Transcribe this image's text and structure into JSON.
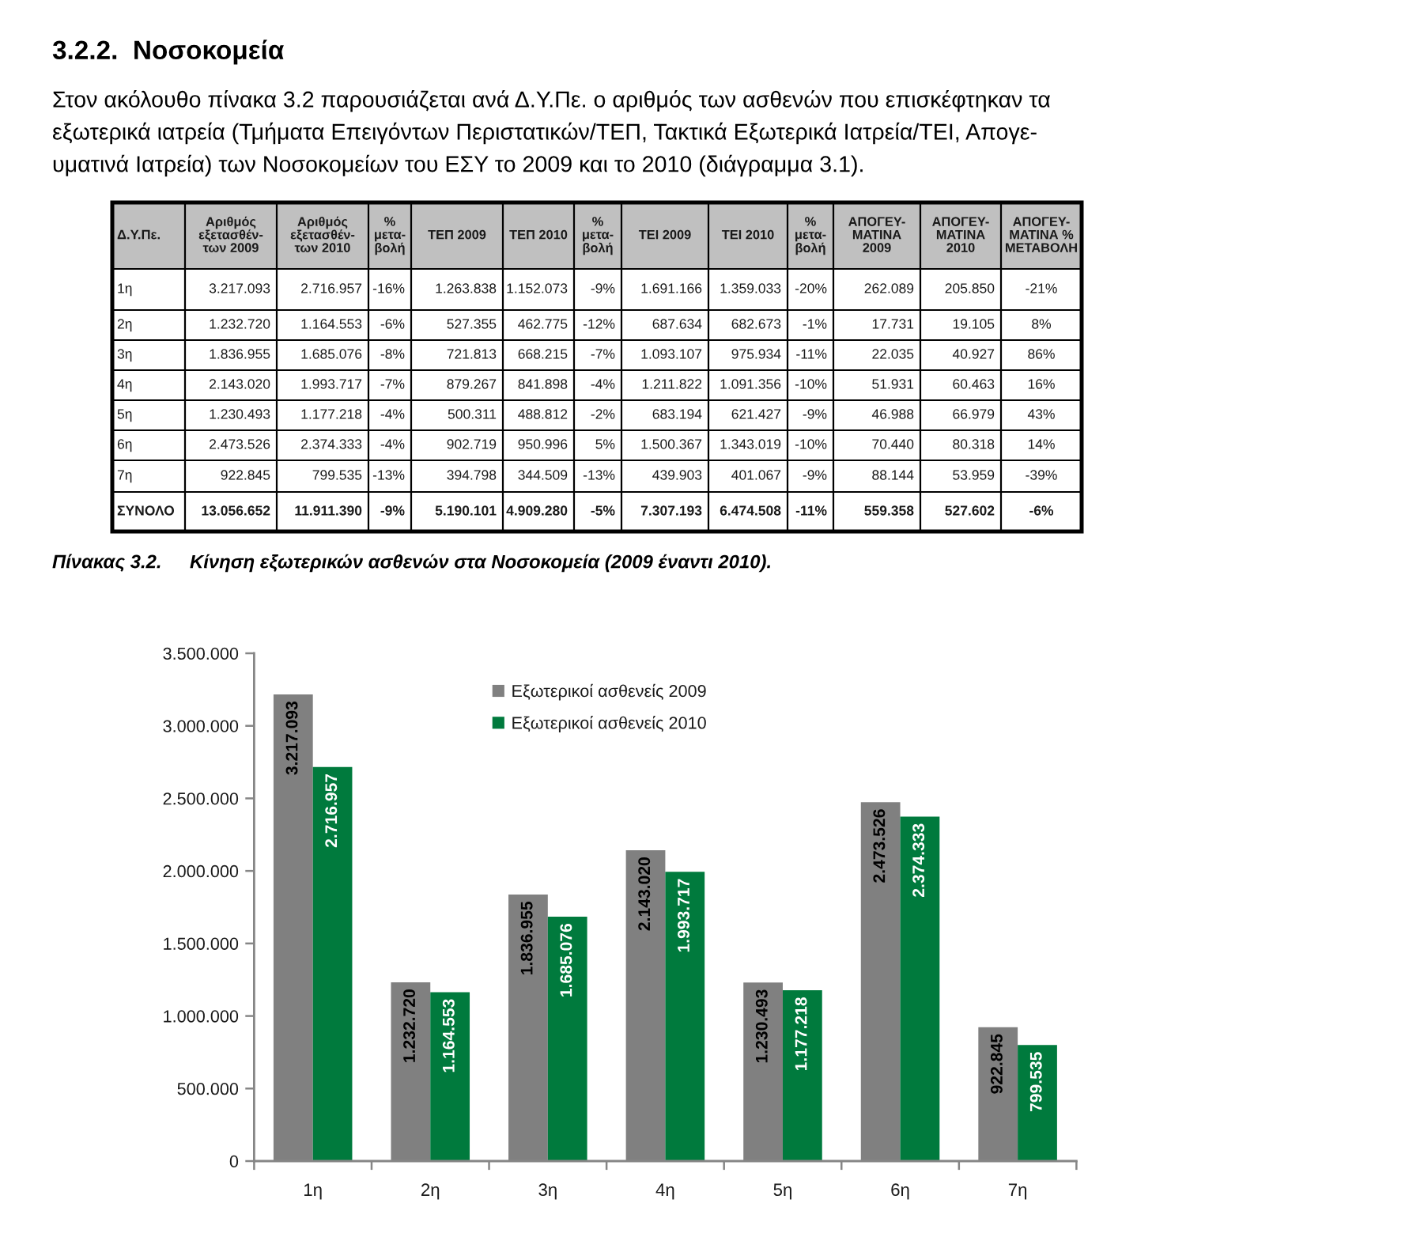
{
  "chart_data": [
    {
      "type": "heatmap",
      "title": "3.2.2.  Νοσοκομεία",
      "subtitle": "Στον ακόλουθο πίνακα 3.2 παρουσιάζεται ανά Δ.Υ.Πε. ο αριθμός των ασθενών που επισκέφτηκαν τα\nεξωτερικά ιατρεία (Τμήματα Επειγόντων Περιστατικών/ΤΕΠ, Τακτικά Εξωτερικά Ιατρεία/ΤΕΙ, Απογε-\nυματινά Ιατρεία) των Νοσοκομείων του ΕΣΥ το 2009 και το 2010 (διάγραμμα 3.1).",
      "ylabel": "Δ.Υ.Πε.",
      "categories": [
        "Αριθμός\nεξετασθέν-\nτων 2009",
        "Αριθμός\nεξετασθέν-\nτων 2010",
        "%\nμετα-\nβολή",
        "ΤΕΠ 2009",
        "ΤΕΠ 2010",
        "%\nμετα-\nβολή",
        "ΤΕΙ 2009",
        "ΤΕΙ 2010",
        "%\nμετα-\nβολή",
        "ΑΠΟΓΕΥ-\nΜΑΤΙΝΑ\n2009",
        "ΑΠΟΓΕΥ-\nΜΑΤΙΝΑ\n2010",
        "ΑΠΟΓΕΥ-\nΜΑΤΙΝΑ %\nΜΕΤΑΒΟΛΗ"
      ],
      "y_categories": [
        "1η",
        "2η",
        "3η",
        "4η",
        "5η",
        "6η",
        "7η",
        "ΣΥΝΟΛΟ"
      ],
      "cells": [
        [
          3217093,
          2716957,
          -16,
          1263838,
          1152073,
          -9,
          1691166,
          1359033,
          -20,
          262089,
          205850,
          -21
        ],
        [
          1232720,
          1164553,
          -6,
          527355,
          462775,
          -12,
          687634,
          682673,
          -1,
          17731,
          19105,
          8
        ],
        [
          1836955,
          1685076,
          -8,
          721813,
          668215,
          -7,
          1093107,
          975934,
          -11,
          22035,
          40927,
          86
        ],
        [
          2143020,
          1993717,
          -7,
          879267,
          841898,
          -4,
          1211822,
          1091356,
          -10,
          51931,
          60463,
          16
        ],
        [
          1230493,
          1177218,
          -4,
          500311,
          488812,
          -2,
          683194,
          621427,
          -9,
          46988,
          66979,
          43
        ],
        [
          2473526,
          2374333,
          -4,
          902719,
          950996,
          5,
          1500367,
          1343019,
          -10,
          70440,
          80318,
          14
        ],
        [
          922845,
          799535,
          -13,
          394798,
          344509,
          -13,
          439903,
          401067,
          -9,
          88144,
          53959,
          -39
        ],
        [
          13056652,
          11911390,
          -9,
          5190101,
          4909280,
          -5,
          7307193,
          6474508,
          -11,
          559358,
          527602,
          -6
        ]
      ],
      "cell_labels": [
        [
          "3.217.093",
          "2.716.957",
          "-16%",
          "1.263.838",
          "1.152.073",
          "-9%",
          "1.691.166",
          "1.359.033",
          "-20%",
          "262.089",
          "205.850",
          "-21%"
        ],
        [
          "1.232.720",
          "1.164.553",
          "-6%",
          "527.355",
          "462.775",
          "-12%",
          "687.634",
          "682.673",
          "-1%",
          "17.731",
          "19.105",
          "8%"
        ],
        [
          "1.836.955",
          "1.685.076",
          "-8%",
          "721.813",
          "668.215",
          "-7%",
          "1.093.107",
          "975.934",
          "-11%",
          "22.035",
          "40.927",
          "86%"
        ],
        [
          "2.143.020",
          "1.993.717",
          "-7%",
          "879.267",
          "841.898",
          "-4%",
          "1.211.822",
          "1.091.356",
          "-10%",
          "51.931",
          "60.463",
          "16%"
        ],
        [
          "1.230.493",
          "1.177.218",
          "-4%",
          "500.311",
          "488.812",
          "-2%",
          "683.194",
          "621.427",
          "-9%",
          "46.988",
          "66.979",
          "43%"
        ],
        [
          "2.473.526",
          "2.374.333",
          "-4%",
          "902.719",
          "950.996",
          "5%",
          "1.500.367",
          "1.343.019",
          "-10%",
          "70.440",
          "80.318",
          "14%"
        ],
        [
          "922.845",
          "799.535",
          "-13%",
          "394.798",
          "344.509",
          "-13%",
          "439.903",
          "401.067",
          "-9%",
          "88.144",
          "53.959",
          "-39%"
        ],
        [
          "13.056.652",
          "11.911.390",
          "-9%",
          "5.190.101",
          "4.909.280",
          "-5%",
          "7.307.193",
          "6.474.508",
          "-11%",
          "559.358",
          "527.602",
          "-6%"
        ]
      ],
      "annotations": [
        "Πίνακας 3.2.",
        "Κίνηση εξωτερικών ασθενών στα Νοσοκομεία (2009 έναντι 2010)."
      ]
    },
    {
      "type": "bar",
      "categories": [
        "1η",
        "2η",
        "3η",
        "4η",
        "5η",
        "6η",
        "7η"
      ],
      "series": [
        {
          "name": "Εξωτερικοί ασθενείς 2009",
          "color": "#808080",
          "values": [
            3217093,
            1232720,
            1836955,
            2143020,
            1230493,
            2473526,
            922845
          ],
          "value_labels": [
            "3.217.093",
            "1.232.720",
            "1.836.955",
            "2.143.020",
            "1.230.493",
            "2.473.526",
            "922.845"
          ]
        },
        {
          "name": "Εξωτερικοί ασθενείς 2010",
          "color": "#007a3d",
          "values": [
            2716957,
            1164553,
            1685076,
            1993717,
            1177218,
            2374333,
            799535
          ],
          "value_labels": [
            "2.716.957",
            "1.164.553",
            "1.685.076",
            "1.993.717",
            "1.177.218",
            "2.374.333",
            "799.535"
          ]
        }
      ],
      "ylim": [
        0,
        3500000
      ],
      "yticks": [
        0,
        {
          "value": 500000,
          "label": "500.000"
        },
        {
          "value": 1000000,
          "label": "1.000.000"
        },
        {
          "value": 1500000,
          "label": "1.500.000"
        },
        {
          "value": 2000000,
          "label": "2.000.000"
        },
        {
          "value": 2500000,
          "label": "2.500.000"
        },
        {
          "value": 3000000,
          "label": "3.000.000"
        },
        {
          "value": 3500000,
          "label": "3.500.000"
        }
      ],
      "legend": "top"
    }
  ]
}
